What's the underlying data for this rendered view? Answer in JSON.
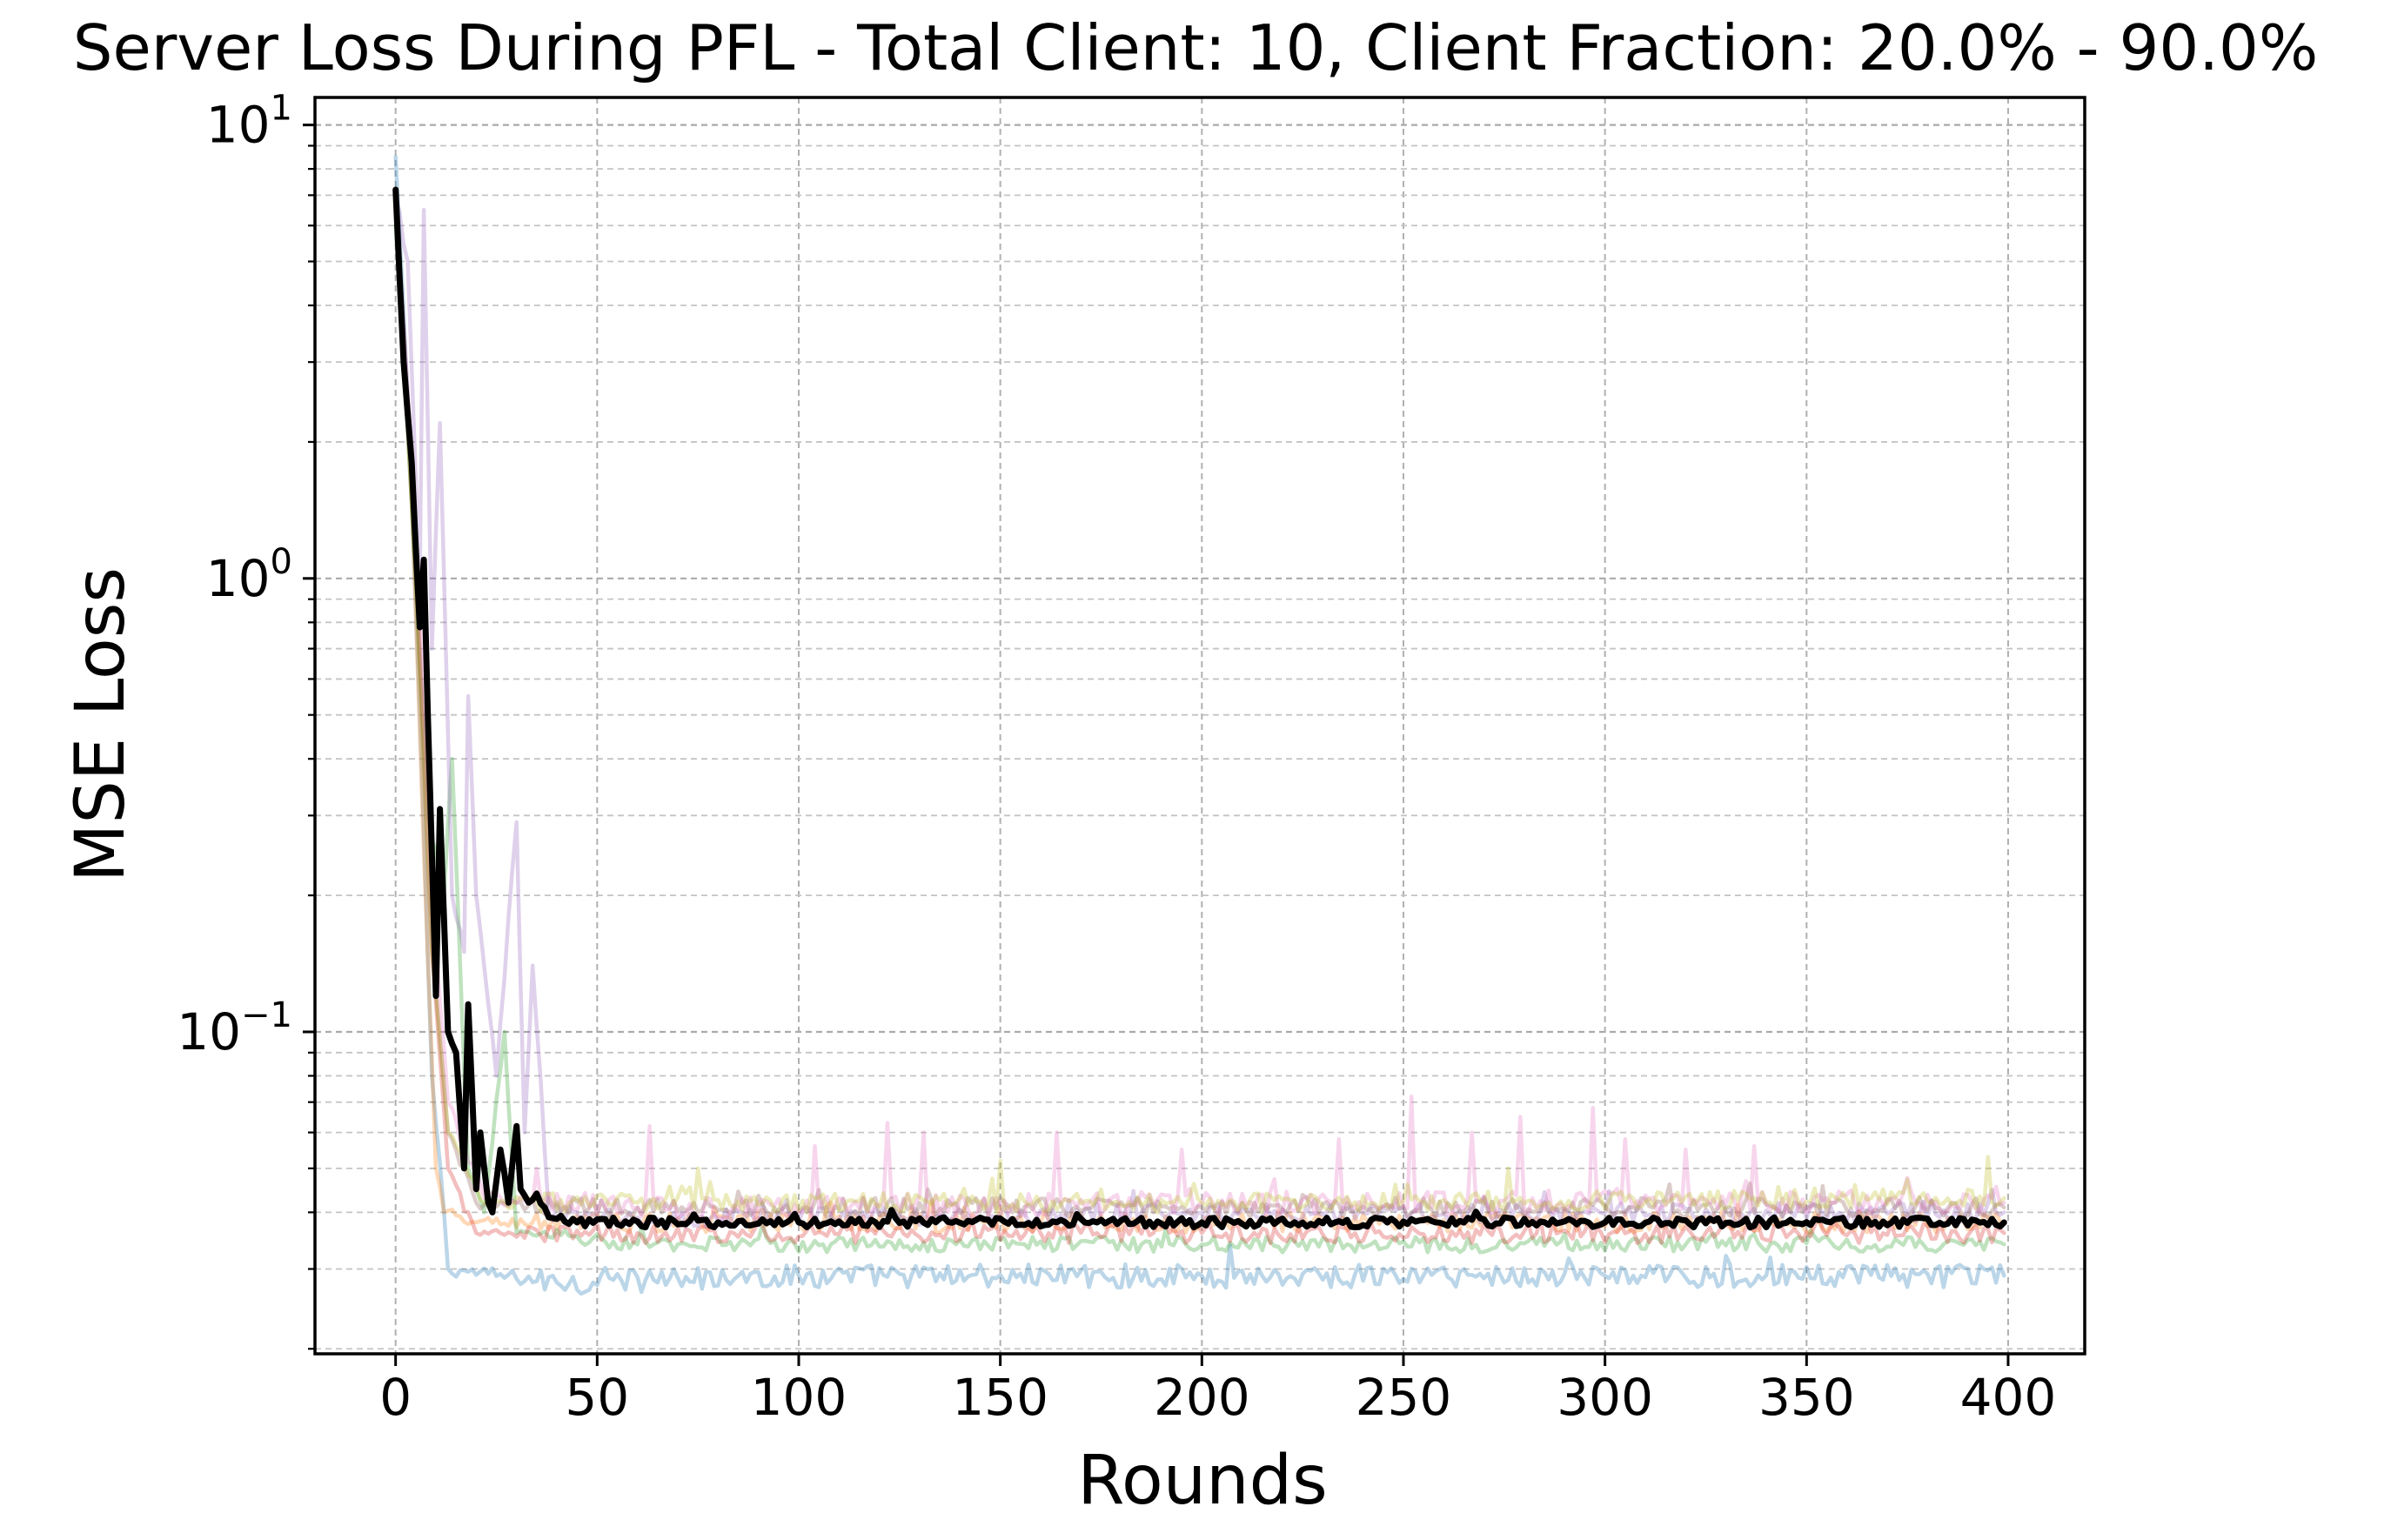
{
  "chart_data": {
    "type": "line",
    "title": "Server Loss During PFL - Total Client: 10, Client Fraction: 20.0% - 90.0%",
    "xlabel": "Rounds",
    "ylabel": "MSE Loss",
    "xlim": [
      -20,
      419
    ],
    "ylim": [
      0.0195,
      11.5
    ],
    "yscale": "log",
    "grid": true,
    "x_ticks": [
      0,
      50,
      100,
      150,
      200,
      250,
      300,
      350,
      400
    ],
    "x_tick_labels": [
      "0",
      "50",
      "100",
      "150",
      "200",
      "250",
      "300",
      "350",
      "400"
    ],
    "y_ticks": [
      {
        "value": 10,
        "base": "10",
        "exp": "1"
      },
      {
        "value": 1,
        "base": "10",
        "exp": "0"
      },
      {
        "value": 0.1,
        "base": "10",
        "exp": "−1"
      }
    ],
    "n_points": 400,
    "series": [
      {
        "color": "#1f77b4",
        "opacity": 0.3,
        "points": [
          [
            0,
            8.5
          ],
          [
            3,
            2.5
          ],
          [
            6,
            0.5
          ],
          [
            9,
            0.08
          ],
          [
            12,
            0.04
          ],
          [
            13,
            0.03
          ],
          [
            40,
            0.028
          ],
          [
            100,
            0.029
          ],
          [
            200,
            0.029
          ],
          [
            300,
            0.029
          ],
          [
            399,
            0.029
          ]
        ],
        "noise": 0.06,
        "spikes": []
      },
      {
        "color": "#ff7f0e",
        "opacity": 0.3,
        "points": [
          [
            0,
            6.5
          ],
          [
            4,
            1.5
          ],
          [
            7,
            0.25
          ],
          [
            10,
            0.05
          ],
          [
            12,
            0.04
          ],
          [
            20,
            0.038
          ],
          [
            60,
            0.038
          ],
          [
            200,
            0.038
          ],
          [
            399,
            0.038
          ]
        ],
        "noise": 0.05,
        "spikes": []
      },
      {
        "color": "#2ca02c",
        "opacity": 0.3,
        "points": [
          [
            0,
            6
          ],
          [
            5,
            1
          ],
          [
            8,
            0.3
          ],
          [
            12,
            0.2
          ],
          [
            14,
            0.4
          ],
          [
            18,
            0.05
          ],
          [
            22,
            0.04
          ],
          [
            27,
            0.1
          ],
          [
            30,
            0.036
          ],
          [
            60,
            0.034
          ],
          [
            200,
            0.034
          ],
          [
            399,
            0.034
          ]
        ],
        "noise": 0.04,
        "spikes": []
      },
      {
        "color": "#d62728",
        "opacity": 0.3,
        "points": [
          [
            0,
            7
          ],
          [
            5,
            1.2
          ],
          [
            9,
            0.15
          ],
          [
            13,
            0.05
          ],
          [
            20,
            0.036
          ],
          [
            60,
            0.036
          ],
          [
            200,
            0.036
          ],
          [
            399,
            0.036
          ]
        ],
        "noise": 0.05,
        "spikes": []
      },
      {
        "color": "#9467bd",
        "opacity": 0.3,
        "points": [
          [
            0,
            7
          ],
          [
            3,
            5
          ],
          [
            6,
            1
          ],
          [
            7,
            6.5
          ],
          [
            9,
            0.7
          ],
          [
            11,
            2.2
          ],
          [
            14,
            0.2
          ],
          [
            17,
            0.15
          ],
          [
            18,
            0.55
          ],
          [
            20,
            0.2
          ],
          [
            25,
            0.08
          ],
          [
            30,
            0.29
          ],
          [
            32,
            0.06
          ],
          [
            34,
            0.14
          ],
          [
            38,
            0.04
          ],
          [
            60,
            0.039
          ],
          [
            200,
            0.04
          ],
          [
            399,
            0.04
          ]
        ],
        "noise": 0.05,
        "spikes": []
      },
      {
        "color": "#8c564b",
        "opacity": 0.3,
        "points": [
          [
            0,
            6.8
          ],
          [
            5,
            1
          ],
          [
            9,
            0.15
          ],
          [
            13,
            0.06
          ],
          [
            20,
            0.042
          ],
          [
            60,
            0.041
          ],
          [
            200,
            0.041
          ],
          [
            399,
            0.041
          ]
        ],
        "noise": 0.05,
        "spikes": []
      },
      {
        "color": "#e377c2",
        "opacity": 0.3,
        "points": [
          [
            0,
            7
          ],
          [
            5,
            1.3
          ],
          [
            9,
            0.2
          ],
          [
            13,
            0.07
          ],
          [
            22,
            0.043
          ],
          [
            60,
            0.041
          ],
          [
            200,
            0.042
          ],
          [
            399,
            0.042
          ]
        ],
        "noise": 0.06,
        "spikes": [
          [
            35,
            0.05
          ],
          [
            63,
            0.062
          ],
          [
            104,
            0.056
          ],
          [
            122,
            0.063
          ],
          [
            131,
            0.06
          ],
          [
            164,
            0.06
          ],
          [
            195,
            0.055
          ],
          [
            234,
            0.058
          ],
          [
            252,
            0.072
          ],
          [
            267,
            0.06
          ],
          [
            279,
            0.065
          ],
          [
            297,
            0.068
          ],
          [
            305,
            0.058
          ],
          [
            320,
            0.055
          ],
          [
            337,
            0.056
          ]
        ]
      },
      {
        "color": "#bcbd22",
        "opacity": 0.3,
        "points": [
          [
            0,
            6.5
          ],
          [
            5,
            1
          ],
          [
            9,
            0.15
          ],
          [
            13,
            0.06
          ],
          [
            22,
            0.042
          ],
          [
            60,
            0.042
          ],
          [
            200,
            0.042
          ],
          [
            399,
            0.043
          ]
        ],
        "noise": 0.05,
        "spikes": [
          [
            75,
            0.05
          ],
          [
            150,
            0.052
          ],
          [
            276,
            0.05
          ],
          [
            395,
            0.053
          ]
        ]
      },
      {
        "color": "#000000",
        "opacity": 1.0,
        "width": 7,
        "points": [
          [
            0,
            7.2
          ],
          [
            2,
            3
          ],
          [
            4,
            1.8
          ],
          [
            6,
            0.78
          ],
          [
            7,
            1.1
          ],
          [
            8,
            0.5
          ],
          [
            10,
            0.12
          ],
          [
            11,
            0.31
          ],
          [
            13,
            0.1
          ],
          [
            15,
            0.09
          ],
          [
            17,
            0.05
          ],
          [
            18,
            0.115
          ],
          [
            20,
            0.045
          ],
          [
            21,
            0.06
          ],
          [
            23,
            0.042
          ],
          [
            24,
            0.04
          ],
          [
            26,
            0.055
          ],
          [
            28,
            0.042
          ],
          [
            30,
            0.062
          ],
          [
            31,
            0.045
          ],
          [
            33,
            0.042
          ],
          [
            35,
            0.044
          ],
          [
            38,
            0.039
          ],
          [
            45,
            0.038
          ],
          [
            100,
            0.038
          ],
          [
            200,
            0.038
          ],
          [
            300,
            0.038
          ],
          [
            399,
            0.038
          ]
        ],
        "noise": 0.025,
        "spikes": []
      }
    ]
  }
}
